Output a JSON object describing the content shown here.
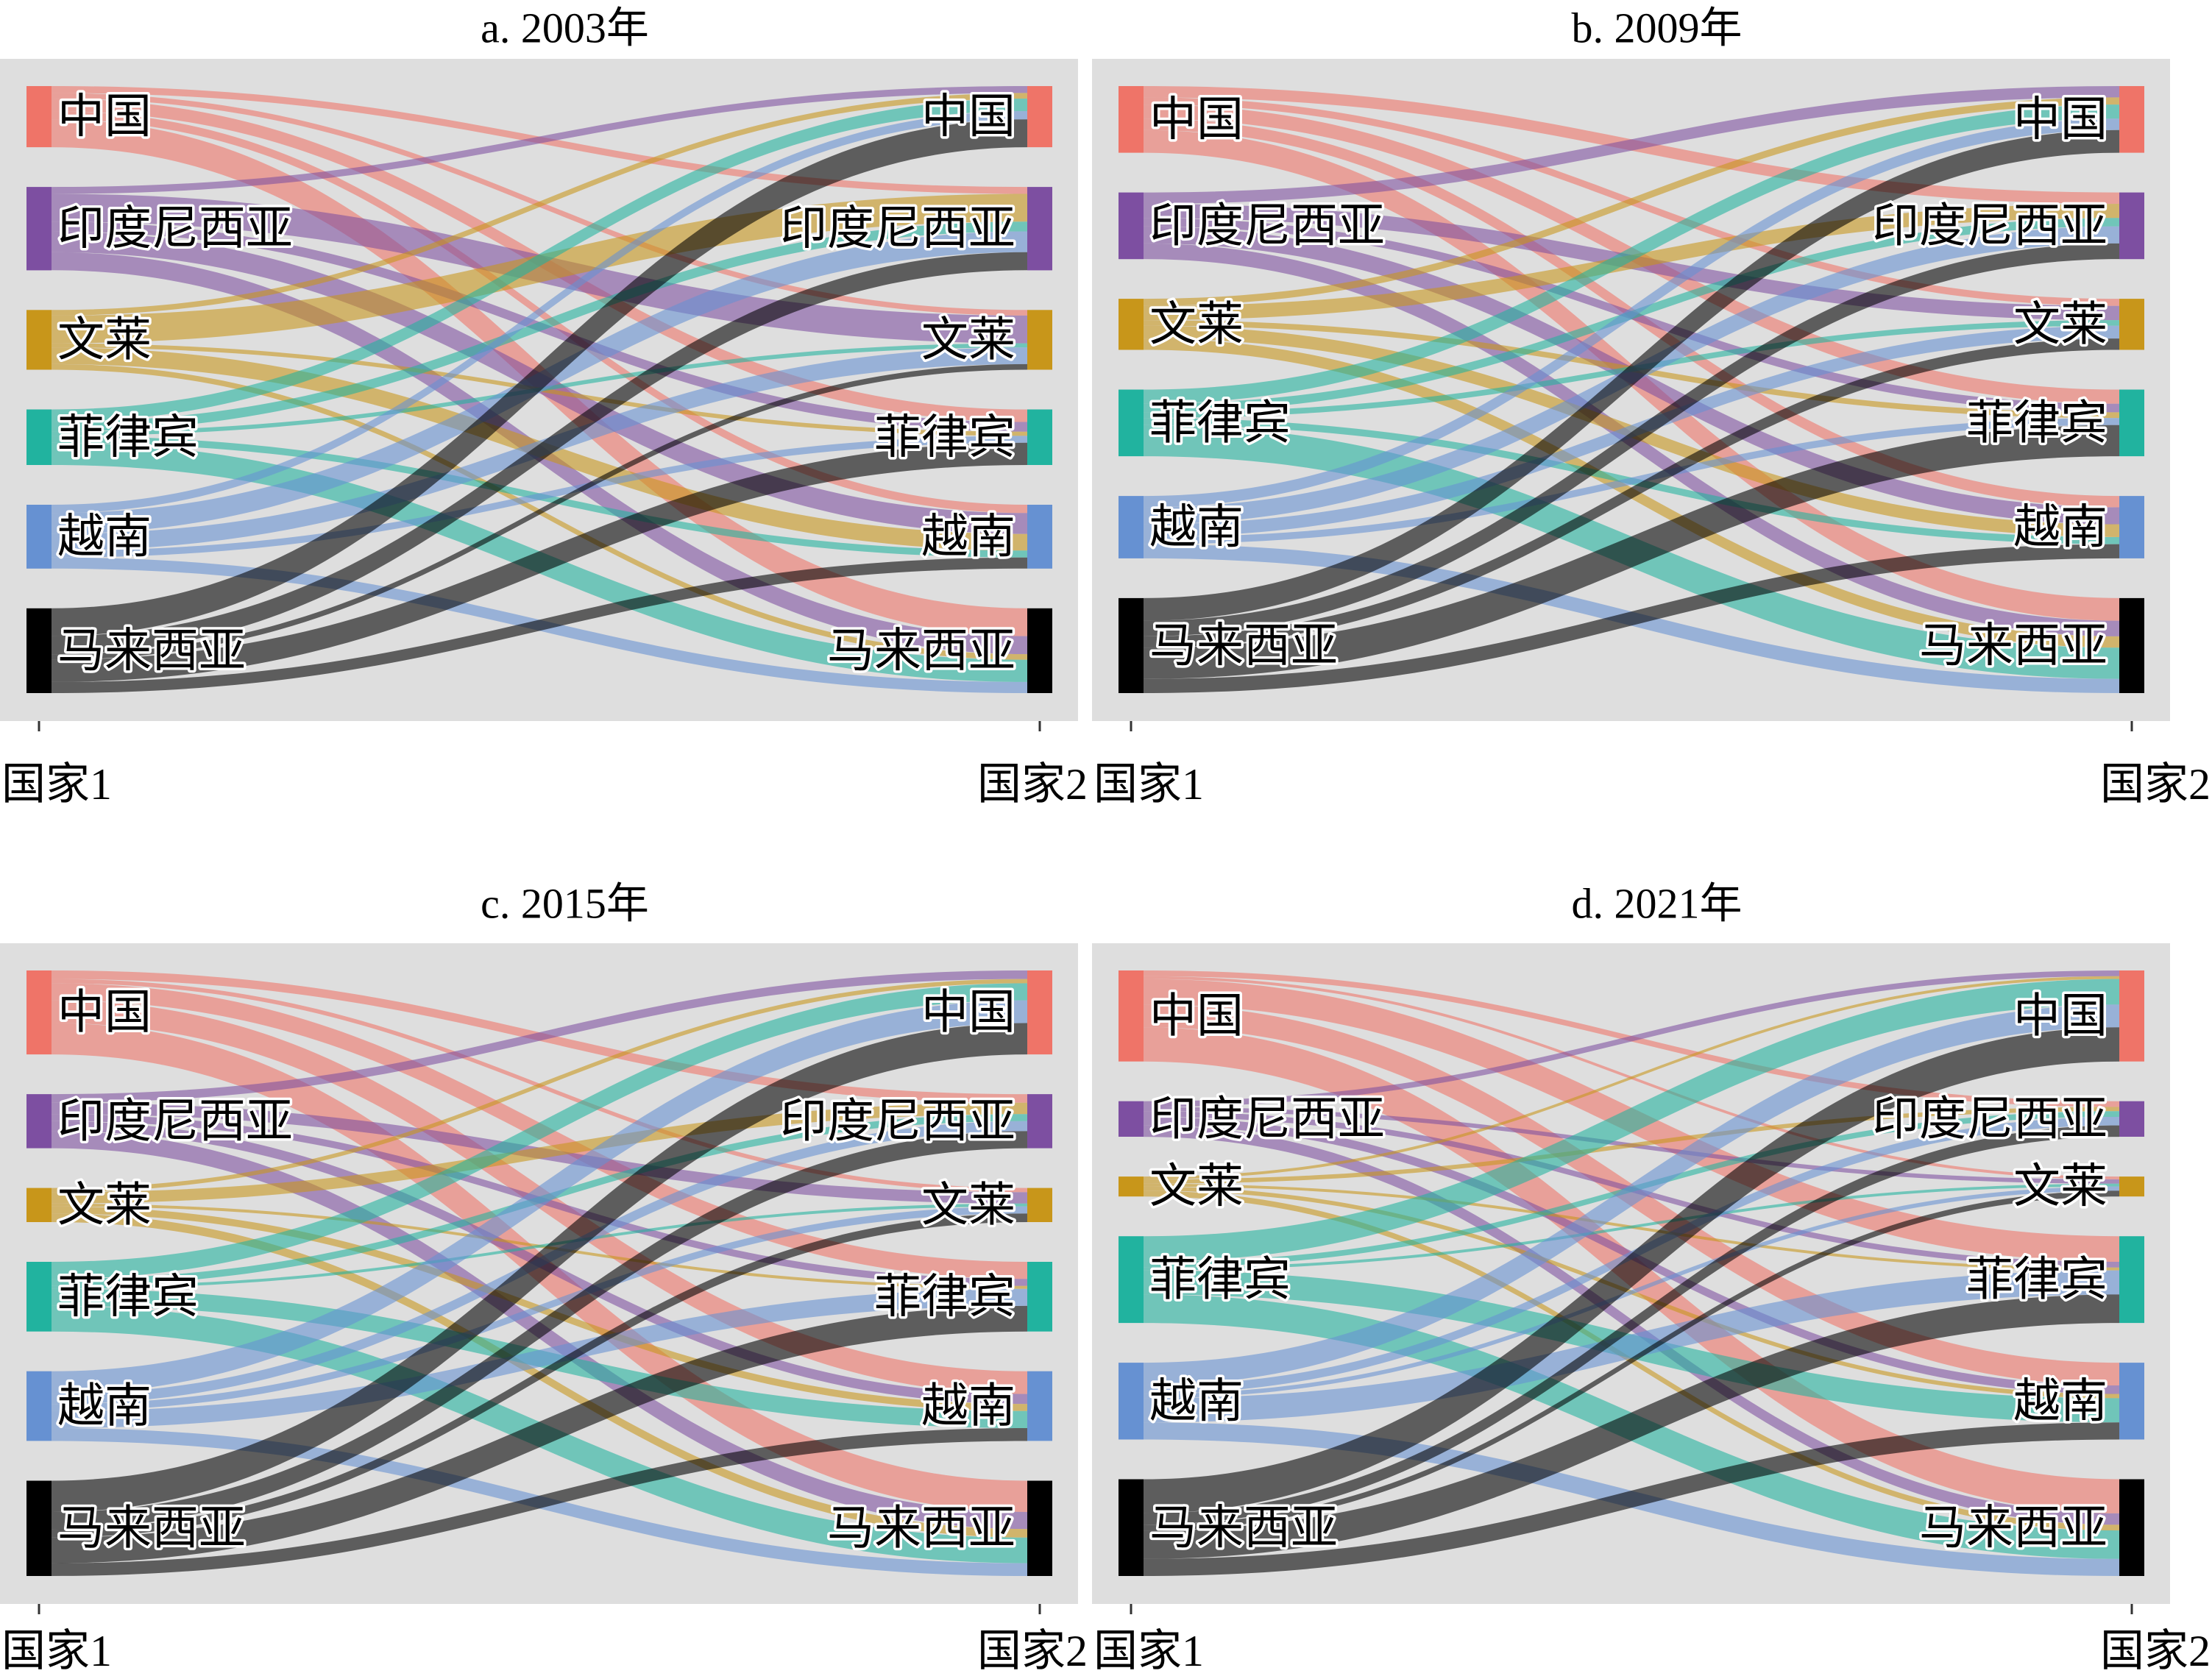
{
  "node_colors": [
    "#EF7468",
    "#7D4FA1",
    "#C8961A",
    "#21B39F",
    "#6691D2",
    "#000000"
  ],
  "plot_background": "#DEDEDE",
  "chart_data": [
    {
      "type": "sankey",
      "title": "a. 2003年",
      "x_tick_labels": [
        "国家1",
        "国家2"
      ],
      "nodes": [
        "中国",
        "印度尼西亚",
        "文莱",
        "菲律宾",
        "越南",
        "马来西亚"
      ],
      "matrix": [
        [
          0,
          5,
          4,
          9,
          6,
          20
        ],
        [
          5,
          0,
          20,
          7,
          15,
          13
        ],
        [
          4,
          20,
          0,
          3,
          12,
          4
        ],
        [
          9,
          7,
          3,
          0,
          5,
          16
        ],
        [
          6,
          15,
          12,
          5,
          0,
          8
        ],
        [
          20,
          13,
          4,
          16,
          8,
          0
        ]
      ]
    },
    {
      "type": "sankey",
      "title": "b. 2009年",
      "x_tick_labels": [
        "国家1",
        "国家2"
      ],
      "nodes": [
        "中国",
        "印度尼西亚",
        "文莱",
        "菲律宾",
        "越南",
        "马来西亚"
      ],
      "matrix": [
        [
          0,
          8,
          5,
          10,
          8,
          16
        ],
        [
          8,
          0,
          10,
          6,
          12,
          11
        ],
        [
          5,
          10,
          0,
          4,
          9,
          8
        ],
        [
          10,
          6,
          4,
          0,
          5,
          22
        ],
        [
          8,
          12,
          9,
          5,
          0,
          10
        ],
        [
          16,
          11,
          8,
          22,
          10,
          0
        ]
      ]
    },
    {
      "type": "sankey",
      "title": "c. 2015年",
      "x_tick_labels": [
        "国家1",
        "国家2"
      ],
      "nodes": [
        "中国",
        "印度尼西亚",
        "文莱",
        "菲律宾",
        "越南",
        "马来西亚"
      ],
      "matrix": [
        [
          0,
          6,
          3,
          12,
          16,
          22
        ],
        [
          6,
          0,
          8,
          5,
          7,
          12
        ],
        [
          3,
          8,
          0,
          2,
          5,
          6
        ],
        [
          12,
          5,
          2,
          0,
          12,
          18
        ],
        [
          16,
          7,
          5,
          12,
          0,
          9
        ],
        [
          22,
          12,
          6,
          18,
          9,
          0
        ]
      ]
    },
    {
      "type": "sankey",
      "title": "d. 2021年",
      "x_tick_labels": [
        "国家1",
        "国家2"
      ],
      "nodes": [
        "中国",
        "印度尼西亚",
        "文莱",
        "菲律宾",
        "越南",
        "马来西亚"
      ],
      "matrix": [
        [
          0,
          4,
          2,
          18,
          16,
          24
        ],
        [
          4,
          0,
          3,
          4,
          6,
          8
        ],
        [
          2,
          3,
          0,
          2,
          3,
          4
        ],
        [
          18,
          4,
          2,
          0,
          17,
          20
        ],
        [
          16,
          6,
          3,
          17,
          0,
          12
        ],
        [
          24,
          8,
          4,
          20,
          12,
          0
        ]
      ]
    }
  ]
}
